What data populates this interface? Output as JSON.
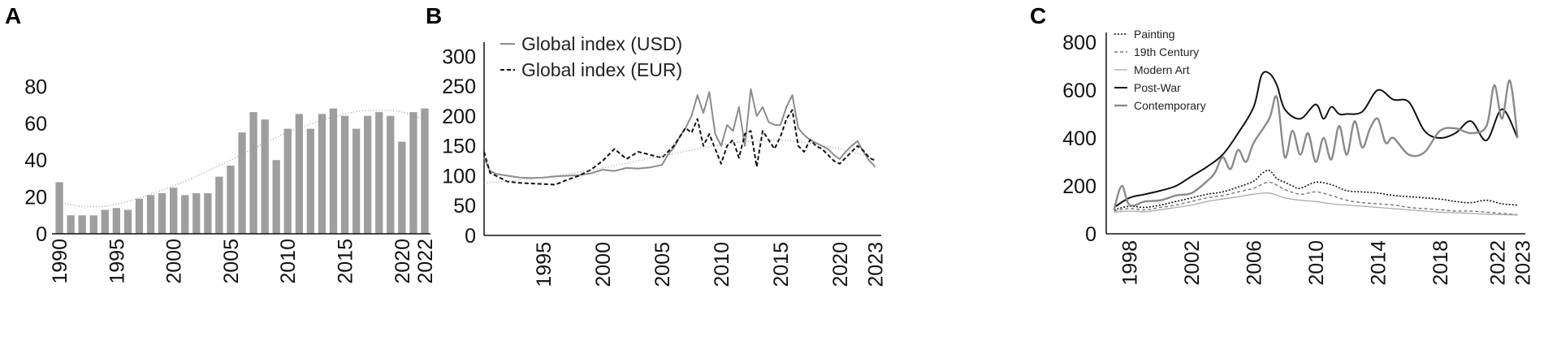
{
  "panels": {
    "a": {
      "label": "A"
    },
    "b": {
      "label": "B"
    },
    "c": {
      "label": "C"
    }
  },
  "colors": {
    "bar": "#9e9e9e",
    "axis": "#111111",
    "usd": "#8c8c8c",
    "eur": "#111111",
    "trend": "#9a9a9a",
    "painting": "#111111",
    "nineteenth": "#777777",
    "modern": "#aaaaaa",
    "postwar": "#111111",
    "contemporary": "#8a8a8a"
  },
  "chart_data": [
    {
      "id": "A",
      "type": "bar",
      "title": "",
      "xlabel": "",
      "ylabel": "",
      "ylim": [
        0,
        85
      ],
      "yticks": [
        0,
        20,
        40,
        60,
        80
      ],
      "xtick_labels": [
        "1990",
        "1995",
        "2000",
        "2005",
        "2010",
        "2015",
        "2020",
        "2022"
      ],
      "categories": [
        "1990",
        "1991",
        "1992",
        "1993",
        "1994",
        "1995",
        "1996",
        "1997",
        "1998",
        "1999",
        "2000",
        "2001",
        "2002",
        "2003",
        "2004",
        "2005",
        "2006",
        "2007",
        "2008",
        "2009",
        "2010",
        "2011",
        "2012",
        "2013",
        "2014",
        "2015",
        "2016",
        "2017",
        "2018",
        "2019",
        "2020",
        "2021",
        "2022"
      ],
      "values": [
        28,
        10,
        10,
        10,
        13,
        14,
        13,
        19,
        21,
        22,
        25,
        21,
        22,
        22,
        31,
        37,
        55,
        66,
        62,
        40,
        57,
        65,
        57,
        65,
        68,
        64,
        57,
        64,
        66,
        64,
        50,
        66,
        68
      ],
      "trend": {
        "type": "polynomial",
        "x": [
          1990,
          1992,
          1995,
          2000,
          2005,
          2010,
          2015,
          2018,
          2020,
          2022
        ],
        "y": [
          17,
          15,
          16,
          26,
          40,
          55,
          65,
          67,
          66,
          62
        ]
      },
      "grid": false,
      "legend": "none"
    },
    {
      "id": "B",
      "type": "line",
      "title": "",
      "xlabel": "",
      "ylabel": "",
      "xlim": [
        1990,
        2023.5
      ],
      "ylim": [
        0,
        310
      ],
      "yticks": [
        0,
        50,
        100,
        150,
        200,
        250,
        300
      ],
      "xticks": [
        1995,
        2000,
        2005,
        2010,
        2015,
        2020,
        2023
      ],
      "legend_position": "top-left",
      "series": [
        {
          "name": "Global index (USD)",
          "style": "solid",
          "x": [
            1990,
            1990.5,
            1991,
            1992,
            1993,
            1994,
            1995,
            1996,
            1997,
            1998,
            1999,
            2000,
            2001,
            2002,
            2003,
            2004,
            2005,
            2005.5,
            2006,
            2006.5,
            2007,
            2007.5,
            2008,
            2008.5,
            2009,
            2009.5,
            2010,
            2010.5,
            2011,
            2011.5,
            2012,
            2012.5,
            2013,
            2013.5,
            2014,
            2014.5,
            2015,
            2015.5,
            2016,
            2016.5,
            2017,
            2017.5,
            2018,
            2018.5,
            2019,
            2019.5,
            2020,
            2020.5,
            2021,
            2021.5,
            2022,
            2022.5,
            2023
          ],
          "y": [
            130,
            108,
            103,
            100,
            97,
            96,
            97,
            99,
            100,
            101,
            104,
            110,
            108,
            113,
            112,
            114,
            118,
            135,
            147,
            165,
            180,
            200,
            235,
            205,
            240,
            170,
            150,
            185,
            175,
            215,
            150,
            245,
            200,
            215,
            190,
            185,
            185,
            215,
            235,
            180,
            168,
            160,
            155,
            150,
            145,
            135,
            128,
            140,
            150,
            158,
            140,
            125,
            115
          ]
        },
        {
          "name": "Global index (EUR)",
          "style": "dashed",
          "x": [
            1990,
            1990.5,
            1991,
            1992,
            1993,
            1994,
            1995,
            1996,
            1997,
            1998,
            1999,
            2000,
            2001,
            2002,
            2003,
            2004,
            2005,
            2005.5,
            2006,
            2006.5,
            2007,
            2007.5,
            2008,
            2008.5,
            2009,
            2009.5,
            2010,
            2010.5,
            2011,
            2011.5,
            2012,
            2012.5,
            2013,
            2013.5,
            2014,
            2014.5,
            2015,
            2015.5,
            2016,
            2016.5,
            2017,
            2017.5,
            2018,
            2018.5,
            2019,
            2019.5,
            2020,
            2020.5,
            2021,
            2021.5,
            2022,
            2022.5,
            2023
          ],
          "y": [
            140,
            105,
            100,
            90,
            88,
            87,
            86,
            85,
            93,
            100,
            110,
            125,
            145,
            128,
            140,
            135,
            130,
            140,
            150,
            165,
            180,
            172,
            195,
            150,
            170,
            145,
            120,
            150,
            160,
            130,
            170,
            175,
            115,
            175,
            160,
            145,
            165,
            195,
            210,
            150,
            140,
            160,
            150,
            145,
            135,
            125,
            120,
            130,
            140,
            150,
            142,
            130,
            125
          ]
        },
        {
          "name": "",
          "style": "trend",
          "x": [
            1990,
            1995,
            2000,
            2005,
            2010,
            2013,
            2016,
            2020,
            2023
          ],
          "y": [
            88,
            97,
            113,
            133,
            152,
            158,
            158,
            145,
            128
          ]
        }
      ]
    },
    {
      "id": "C",
      "type": "line",
      "title": "",
      "xlabel": "",
      "ylabel": "",
      "xlim": [
        1996.5,
        2023.5
      ],
      "ylim": [
        0,
        820
      ],
      "yticks": [
        0,
        200,
        400,
        600,
        800
      ],
      "xticks": [
        1998,
        2002,
        2006,
        2010,
        2014,
        2018,
        2022,
        2023
      ],
      "legend_position": "top-left",
      "series": [
        {
          "name": "Painting",
          "style": "dotted",
          "x": [
            1997,
            1998,
            1999,
            2000,
            2001,
            2002,
            2003,
            2004,
            2005,
            2006,
            2006.5,
            2007,
            2007.5,
            2008,
            2008.5,
            2009,
            2010,
            2011,
            2012,
            2013,
            2014,
            2015,
            2016,
            2017,
            2018,
            2019,
            2020,
            2021,
            2022,
            2023
          ],
          "y": [
            100,
            115,
            110,
            120,
            135,
            150,
            165,
            175,
            195,
            220,
            250,
            265,
            230,
            215,
            200,
            190,
            215,
            205,
            180,
            175,
            170,
            160,
            155,
            150,
            145,
            135,
            130,
            140,
            125,
            120
          ]
        },
        {
          "name": "19th Century",
          "style": "dashed",
          "x": [
            1997,
            1998,
            1999,
            2000,
            2001,
            2002,
            2003,
            2004,
            2005,
            2006,
            2007,
            2008,
            2009,
            2010,
            2011,
            2012,
            2013,
            2014,
            2015,
            2016,
            2017,
            2018,
            2019,
            2020,
            2021,
            2022,
            2023
          ],
          "y": [
            95,
            105,
            100,
            110,
            120,
            135,
            150,
            160,
            175,
            190,
            215,
            185,
            165,
            175,
            160,
            140,
            130,
            125,
            120,
            110,
            105,
            100,
            95,
            95,
            90,
            85,
            80
          ]
        },
        {
          "name": "Modern Art",
          "style": "solid-light",
          "x": [
            1997,
            1998,
            1999,
            2000,
            2001,
            2002,
            2003,
            2004,
            2005,
            2006,
            2007,
            2008,
            2009,
            2010,
            2011,
            2012,
            2013,
            2014,
            2015,
            2016,
            2017,
            2018,
            2019,
            2020,
            2021,
            2022,
            2023
          ],
          "y": [
            90,
            95,
            92,
            100,
            110,
            120,
            135,
            145,
            155,
            165,
            170,
            150,
            140,
            135,
            125,
            120,
            115,
            110,
            105,
            100,
            95,
            90,
            88,
            85,
            82,
            80,
            78
          ]
        },
        {
          "name": "Post-War",
          "style": "solid-dark",
          "x": [
            1997,
            1998,
            1999,
            2000,
            2001,
            2002,
            2003,
            2004,
            2005,
            2006,
            2006.5,
            2007,
            2007.5,
            2008,
            2009,
            2010,
            2010.5,
            2011,
            2011.5,
            2012,
            2013,
            2014,
            2015,
            2016,
            2017,
            2018,
            2019,
            2020,
            2021,
            2022,
            2023
          ],
          "y": [
            110,
            150,
            165,
            180,
            200,
            240,
            280,
            330,
            420,
            530,
            660,
            670,
            620,
            520,
            480,
            540,
            480,
            530,
            500,
            500,
            510,
            600,
            560,
            550,
            430,
            400,
            420,
            470,
            390,
            520,
            400
          ]
        },
        {
          "name": "Contemporary",
          "style": "solid-grey",
          "x": [
            1997,
            1997.5,
            1998,
            1999,
            2000,
            2001,
            2002,
            2003,
            2003.5,
            2004,
            2004.5,
            2005,
            2005.5,
            2006,
            2007,
            2007.5,
            2008,
            2008.5,
            2009,
            2009.5,
            2010,
            2010.5,
            2011,
            2011.5,
            2012,
            2012.5,
            2013,
            2013.5,
            2014,
            2014.5,
            2015,
            2016,
            2017,
            2018,
            2019,
            2020,
            2021,
            2021.5,
            2022,
            2022.5,
            2023
          ],
          "y": [
            100,
            200,
            120,
            135,
            140,
            160,
            170,
            220,
            255,
            320,
            270,
            350,
            300,
            380,
            480,
            570,
            320,
            430,
            330,
            420,
            300,
            400,
            310,
            450,
            330,
            470,
            360,
            440,
            480,
            380,
            400,
            330,
            340,
            430,
            440,
            420,
            450,
            620,
            480,
            640,
            400
          ]
        }
      ]
    }
  ]
}
